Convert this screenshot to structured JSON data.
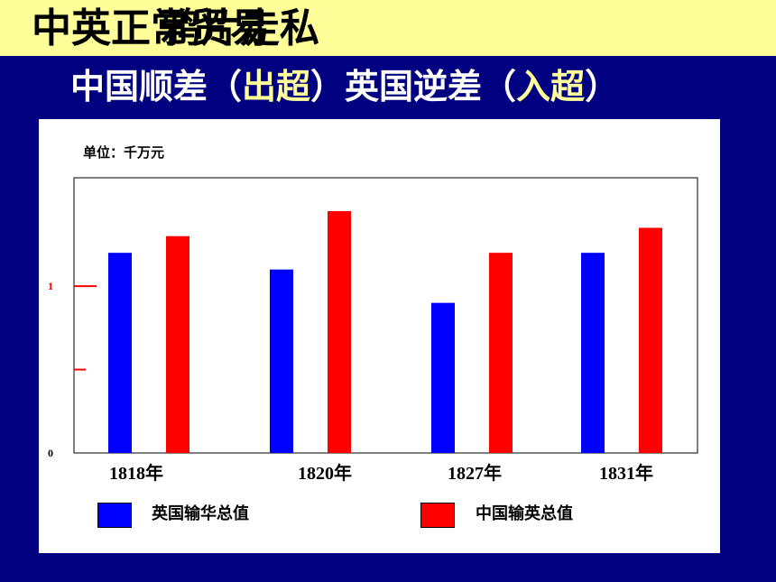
{
  "title": {
    "line_a": "中英正常贸易",
    "line_b": "鸦片走私"
  },
  "subtitle": {
    "part1": "中国顺差（",
    "part1_hl": "出超",
    "part2": "）英国逆差（",
    "part2_hl": "入超",
    "part3": "）"
  },
  "colors": {
    "banner": "#FFFF99",
    "background": "#000080",
    "britain": "#0000FF",
    "china": "#FF0000",
    "highlight": "#FFFF99"
  },
  "chart_data": {
    "type": "bar",
    "unit_label": "单位：千万元",
    "categories": [
      "1818年",
      "1820年",
      "1827年",
      "1831年"
    ],
    "series": [
      {
        "name": "英国输华总值",
        "values": [
          1.2,
          1.1,
          0.9,
          1.2
        ]
      },
      {
        "name": "中国输英总值",
        "values": [
          1.3,
          1.45,
          1.2,
          1.35
        ]
      }
    ],
    "y_ticks": [
      {
        "value": 0,
        "label": "0"
      },
      {
        "value": 0.5,
        "label": ""
      },
      {
        "value": 1,
        "label": "1"
      }
    ],
    "ylim": [
      0,
      1.65
    ],
    "grid": false,
    "legend_position": "bottom"
  }
}
